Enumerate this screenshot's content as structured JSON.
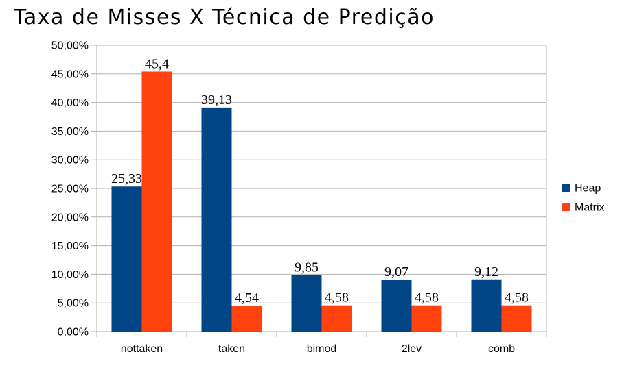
{
  "chart_data": {
    "type": "bar",
    "title": "Taxa de Misses X Técnica de Predição",
    "xlabel": "",
    "ylabel": "",
    "categories": [
      "nottaken",
      "taken",
      "bimod",
      "2lev",
      "comb"
    ],
    "series": [
      {
        "name": "Heap",
        "color": "#004586",
        "values": [
          25.33,
          39.13,
          9.85,
          9.07,
          9.12
        ],
        "labels": [
          "25,33",
          "39,13",
          "9,85",
          "9,07",
          "9,12"
        ]
      },
      {
        "name": "Matrix",
        "color": "#ff420e",
        "values": [
          45.4,
          4.54,
          4.58,
          4.58,
          4.58
        ],
        "labels": [
          "45,4",
          "4,54",
          "4,58",
          "4,58",
          "4,58"
        ]
      }
    ],
    "ylim": [
      0,
      50
    ],
    "ytick_step": 5,
    "ytick_labels": [
      "0,00%",
      "5,00%",
      "10,00%",
      "15,00%",
      "20,00%",
      "25,00%",
      "30,00%",
      "35,00%",
      "40,00%",
      "45,00%",
      "50,00%"
    ],
    "grid": true,
    "legend_position": "right"
  }
}
